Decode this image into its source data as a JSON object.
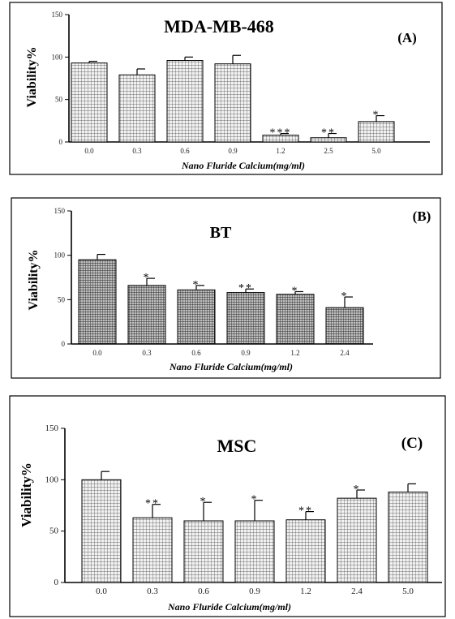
{
  "chart_data": [
    {
      "type": "bar",
      "panel_label": "(A)",
      "title": "MDA-MB-468",
      "xlabel": "Nano Fluride Calcium(mg/ml)",
      "ylabel": "Viability%",
      "ylim": [
        0,
        150
      ],
      "yticks": [
        "0",
        "50",
        "100",
        "150"
      ],
      "categories": [
        "0.0",
        "0.3",
        "0.6",
        "0.9",
        "1.2",
        "2.5",
        "5.0"
      ],
      "values": [
        93,
        79,
        96,
        92,
        8,
        5,
        24
      ],
      "errors": [
        2,
        7,
        4,
        10,
        2,
        5,
        7
      ],
      "significance": [
        "",
        "",
        "",
        "",
        "***",
        "**",
        "*"
      ],
      "bar_color": "#e6e6e6",
      "pattern": "grid"
    },
    {
      "type": "bar",
      "panel_label": "(B)",
      "title": "BT",
      "xlabel": "Nano Fluride Calcium(mg/ml)",
      "ylabel": "Viability%",
      "ylim": [
        0,
        150
      ],
      "yticks": [
        "0",
        "50",
        "100",
        "150"
      ],
      "categories": [
        "0.0",
        "0.3",
        "0.6",
        "0.9",
        "1.2",
        "2.4"
      ],
      "values": [
        95,
        66,
        61,
        58,
        56,
        41
      ],
      "errors": [
        6,
        8,
        5,
        4,
        3,
        12
      ],
      "significance": [
        "",
        "*",
        "*",
        "**",
        "*",
        "*"
      ],
      "bar_color": "#c8c8c8",
      "pattern": "dense"
    },
    {
      "type": "bar",
      "panel_label": "(C)",
      "title": "MSC",
      "xlabel": "Nano Fluride Calcium(mg/ml)",
      "ylabel": "Viability%",
      "ylim": [
        0,
        150
      ],
      "yticks": [
        "0",
        "50",
        "100",
        "150"
      ],
      "categories": [
        "0.0",
        "0.3",
        "0.6",
        "0.9",
        "1.2",
        "2.4",
        "5.0"
      ],
      "values": [
        100,
        63,
        60,
        60,
        61,
        82,
        88
      ],
      "errors": [
        8,
        13,
        18,
        20,
        8,
        8,
        8
      ],
      "significance": [
        "",
        "**",
        "*",
        "*",
        "**",
        "*",
        ""
      ],
      "bar_color": "#ececec",
      "pattern": "grid"
    }
  ]
}
